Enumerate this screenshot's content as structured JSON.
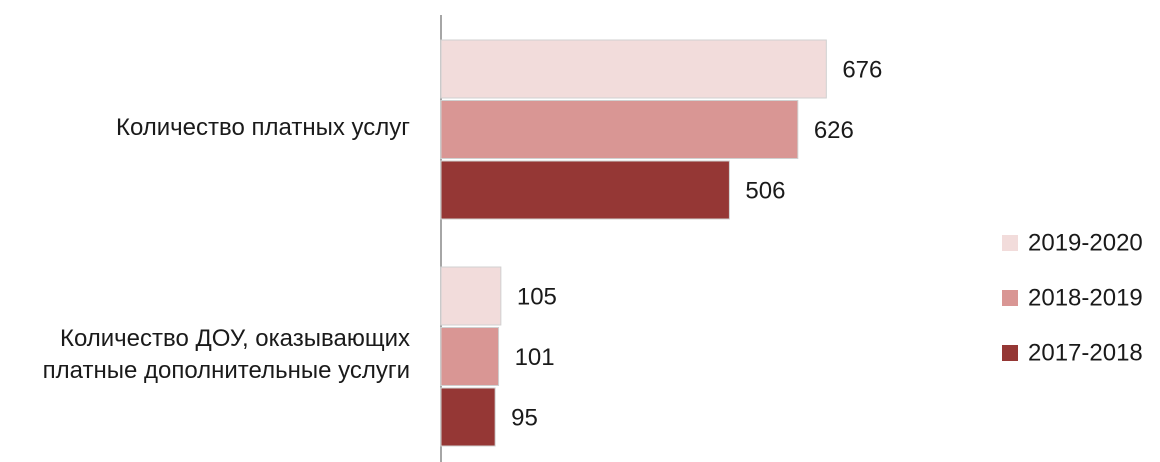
{
  "chart_data": {
    "type": "hbar",
    "categories": [
      "Количество платных услуг",
      "Количество ДОУ, оказывающих платные дополнительные услуги"
    ],
    "series": [
      {
        "name": "2019-2020",
        "color": "#f2dcdb",
        "values": [
          676,
          105
        ]
      },
      {
        "name": "2018-2019",
        "color": "#d99694",
        "values": [
          626,
          101
        ]
      },
      {
        "name": "2017-2018",
        "color": "#953735",
        "values": [
          506,
          95
        ]
      }
    ],
    "legend": "right"
  }
}
